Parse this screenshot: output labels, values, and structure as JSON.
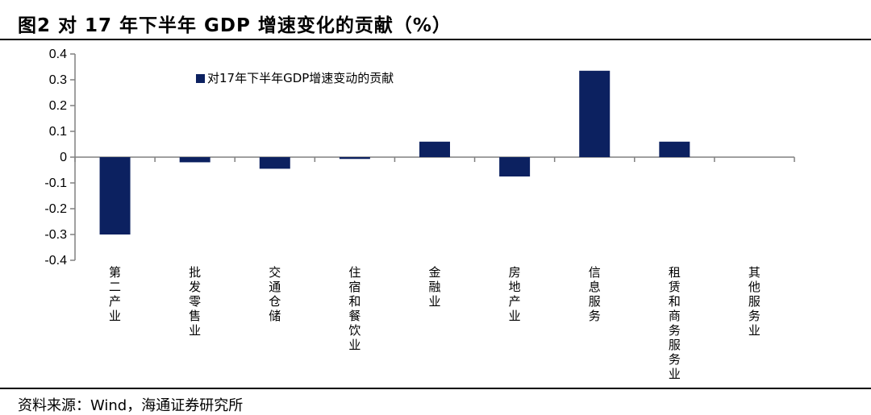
{
  "figure": {
    "title": "图2  对 17 年下半年 GDP 增速变化的贡献（%）",
    "source": "资料来源：Wind，海通证券研究所"
  },
  "colors": {
    "bar": "#0c2160",
    "axis": "#808080",
    "text": "#000000"
  },
  "chart_data": {
    "type": "bar",
    "title": "",
    "xlabel": "",
    "ylabel": "",
    "categories": [
      "第二产业",
      "批发零售业",
      "交通仓储",
      "住宿和餐饮业",
      "金融业",
      "房地产业",
      "信息服务",
      "租赁和商务服务业",
      "其他服务业"
    ],
    "series": [
      {
        "name": "对17年下半年GDP增速变动的贡献",
        "values": [
          -0.3,
          -0.02,
          -0.045,
          -0.007,
          0.06,
          -0.075,
          0.335,
          0.06,
          0
        ]
      }
    ],
    "ylim": [
      -0.4,
      0.4
    ],
    "yticks": [
      0.4,
      0.3,
      0.2,
      0.1,
      0,
      -0.1,
      -0.2,
      -0.3,
      -0.4
    ],
    "ytick_labels": [
      "0.4",
      "0.3",
      "0.2",
      "0.1",
      "0",
      "-0.1",
      "-0.2",
      "-0.3",
      "-0.4"
    ],
    "grid": false,
    "legend_position": "top-left"
  }
}
